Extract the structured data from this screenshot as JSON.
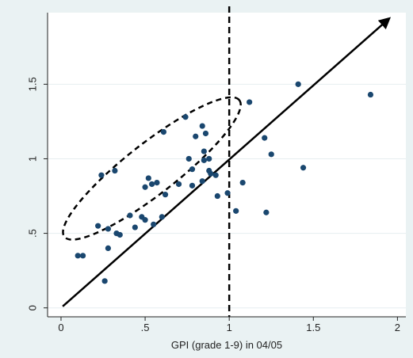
{
  "chart_data": {
    "type": "scatter",
    "title": "",
    "xlabel": "GPI (grade 1-9) in 04/05",
    "ylabel": "",
    "xlim": [
      -0.08,
      2.05
    ],
    "ylim": [
      -0.06,
      1.98
    ],
    "grid": true,
    "legend": "none",
    "xticks": [
      {
        "value": 0,
        "label": "0"
      },
      {
        "value": 0.5,
        "label": ".5"
      },
      {
        "value": 1,
        "label": "1"
      },
      {
        "value": 1.5,
        "label": "1.5"
      },
      {
        "value": 2,
        "label": "2"
      }
    ],
    "yticks": [
      {
        "value": 0,
        "label": "0"
      },
      {
        "value": 0.5,
        "label": ".5"
      },
      {
        "value": 1,
        "label": "1"
      },
      {
        "value": 1.5,
        "label": "1.5"
      }
    ],
    "series": [
      {
        "marker_color": "#1a476f",
        "points": [
          {
            "x": 0.1,
            "y": 0.35
          },
          {
            "x": 0.13,
            "y": 0.35
          },
          {
            "x": 0.26,
            "y": 0.18
          },
          {
            "x": 0.28,
            "y": 0.4
          },
          {
            "x": 0.22,
            "y": 0.55
          },
          {
            "x": 0.28,
            "y": 0.53
          },
          {
            "x": 0.33,
            "y": 0.5
          },
          {
            "x": 0.35,
            "y": 0.49
          },
          {
            "x": 0.24,
            "y": 0.89
          },
          {
            "x": 0.32,
            "y": 0.92
          },
          {
            "x": 0.41,
            "y": 0.62
          },
          {
            "x": 0.44,
            "y": 0.54
          },
          {
            "x": 0.48,
            "y": 0.61
          },
          {
            "x": 0.5,
            "y": 0.59
          },
          {
            "x": 0.5,
            "y": 0.81
          },
          {
            "x": 0.52,
            "y": 0.87
          },
          {
            "x": 0.54,
            "y": 0.83
          },
          {
            "x": 0.57,
            "y": 0.84
          },
          {
            "x": 0.55,
            "y": 0.56
          },
          {
            "x": 0.6,
            "y": 0.61
          },
          {
            "x": 0.61,
            "y": 1.18
          },
          {
            "x": 0.62,
            "y": 0.76
          },
          {
            "x": 0.7,
            "y": 0.83
          },
          {
            "x": 0.74,
            "y": 1.28
          },
          {
            "x": 0.76,
            "y": 1.0
          },
          {
            "x": 0.78,
            "y": 0.93
          },
          {
            "x": 0.78,
            "y": 0.82
          },
          {
            "x": 0.8,
            "y": 1.15
          },
          {
            "x": 0.84,
            "y": 1.22
          },
          {
            "x": 0.84,
            "y": 0.85
          },
          {
            "x": 0.85,
            "y": 0.99
          },
          {
            "x": 0.85,
            "y": 1.05
          },
          {
            "x": 0.86,
            "y": 1.17
          },
          {
            "x": 0.88,
            "y": 1.0
          },
          {
            "x": 0.88,
            "y": 0.92
          },
          {
            "x": 0.89,
            "y": 0.9
          },
          {
            "x": 0.92,
            "y": 0.89
          },
          {
            "x": 0.93,
            "y": 0.75
          },
          {
            "x": 0.99,
            "y": 0.77
          },
          {
            "x": 1.04,
            "y": 0.65
          },
          {
            "x": 1.08,
            "y": 0.84
          },
          {
            "x": 1.12,
            "y": 1.38
          },
          {
            "x": 1.21,
            "y": 1.14
          },
          {
            "x": 1.22,
            "y": 0.64
          },
          {
            "x": 1.25,
            "y": 1.03
          },
          {
            "x": 1.41,
            "y": 1.5
          },
          {
            "x": 1.44,
            "y": 0.94
          },
          {
            "x": 1.84,
            "y": 1.43
          }
        ]
      }
    ],
    "reference_lines": [
      {
        "type": "vertical",
        "x": 1,
        "style": "dashed"
      },
      {
        "type": "arrow",
        "from": [
          0.01,
          0.01
        ],
        "to": [
          1.95,
          1.94
        ],
        "style": "solid"
      }
    ],
    "annotations": [
      {
        "type": "ellipse",
        "cx": 0.54,
        "cy": 0.935,
        "rx": 0.66,
        "ry": 0.17,
        "angle_deg": -38,
        "style": "dashed"
      }
    ]
  }
}
